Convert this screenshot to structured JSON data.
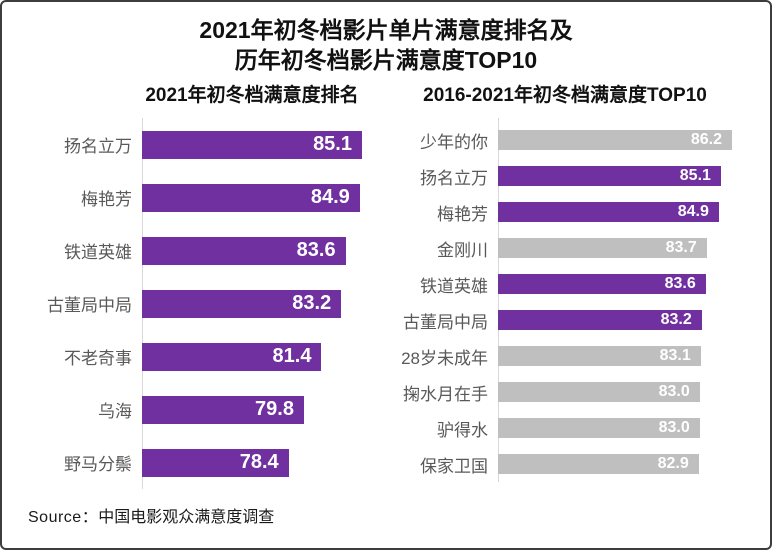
{
  "header": {
    "title_line1": "2021年初冬档影片单片满意度排名及",
    "title_line2": "历年初冬档影片满意度TOP10"
  },
  "source": {
    "prefix": "Source：",
    "text": "中国电影观众满意度调查"
  },
  "colors": {
    "accent_purple": "#7030A0",
    "neutral_gray": "#BFBFBF",
    "axis_line": "#D9D9D9",
    "label_text": "#595959",
    "value_text": "#FFFFFF"
  },
  "chart_data": [
    {
      "type": "bar",
      "orientation": "horizontal",
      "title": "2021年初冬档满意度排名",
      "categories": [
        "扬名立万",
        "梅艳芳",
        "铁道英雄",
        "古董局中局",
        "不老奇事",
        "乌海",
        "野马分鬃"
      ],
      "values": [
        85.1,
        84.9,
        83.6,
        83.2,
        81.4,
        79.8,
        78.4
      ],
      "colors": [
        "#7030A0",
        "#7030A0",
        "#7030A0",
        "#7030A0",
        "#7030A0",
        "#7030A0",
        "#7030A0"
      ],
      "value_labels": "inside-end",
      "value_decimals": 1,
      "xlim": [
        65,
        85.1
      ],
      "grid": false,
      "legend": false
    },
    {
      "type": "bar",
      "orientation": "horizontal",
      "title": "2016-2021年初冬档满意度TOP10",
      "categories": [
        "少年的你",
        "扬名立万",
        "梅艳芳",
        "金刚川",
        "铁道英雄",
        "古董局中局",
        "28岁未成年",
        "掬水月在手",
        "驴得水",
        "保家卫国"
      ],
      "values": [
        86.2,
        85.1,
        84.9,
        83.7,
        83.6,
        83.2,
        83.1,
        83.0,
        83.0,
        82.9
      ],
      "colors": [
        "#BFBFBF",
        "#7030A0",
        "#7030A0",
        "#BFBFBF",
        "#7030A0",
        "#7030A0",
        "#BFBFBF",
        "#BFBFBF",
        "#BFBFBF",
        "#BFBFBF"
      ],
      "value_labels": "inside-end",
      "value_decimals": 1,
      "xlim": [
        63,
        86.2
      ],
      "grid": false,
      "legend": false
    }
  ]
}
